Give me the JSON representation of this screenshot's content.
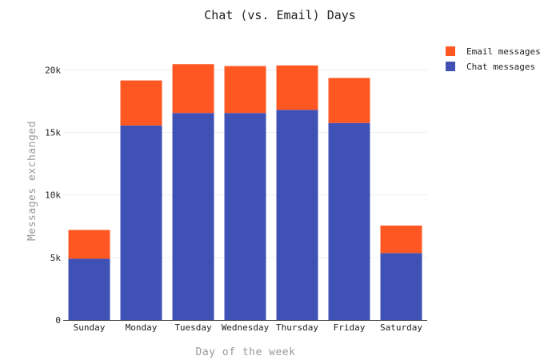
{
  "chart_data": {
    "type": "bar",
    "stacked": true,
    "title": "Chat (vs. Email) Days",
    "xlabel": "Day of the week",
    "ylabel": "Messages exchanged",
    "categories": [
      "Sunday",
      "Monday",
      "Tuesday",
      "Wednesday",
      "Thursday",
      "Friday",
      "Saturday"
    ],
    "ylim": [
      0,
      22000
    ],
    "yticks": [
      0,
      5000,
      10000,
      15000,
      20000
    ],
    "ytick_labels": [
      "0",
      "5k",
      "10k",
      "15k",
      "20k"
    ],
    "grid": true,
    "legend_position": "top-right",
    "series": [
      {
        "name": "Chat messages",
        "color": "#3f51b5",
        "values": [
          4900,
          15550,
          16550,
          16550,
          16800,
          15750,
          5350
        ]
      },
      {
        "name": "Email messages",
        "color": "#ff5722",
        "values": [
          2300,
          3600,
          3900,
          3750,
          3550,
          3600,
          2200
        ]
      }
    ],
    "legend_order": [
      "Email messages",
      "Chat messages"
    ]
  }
}
